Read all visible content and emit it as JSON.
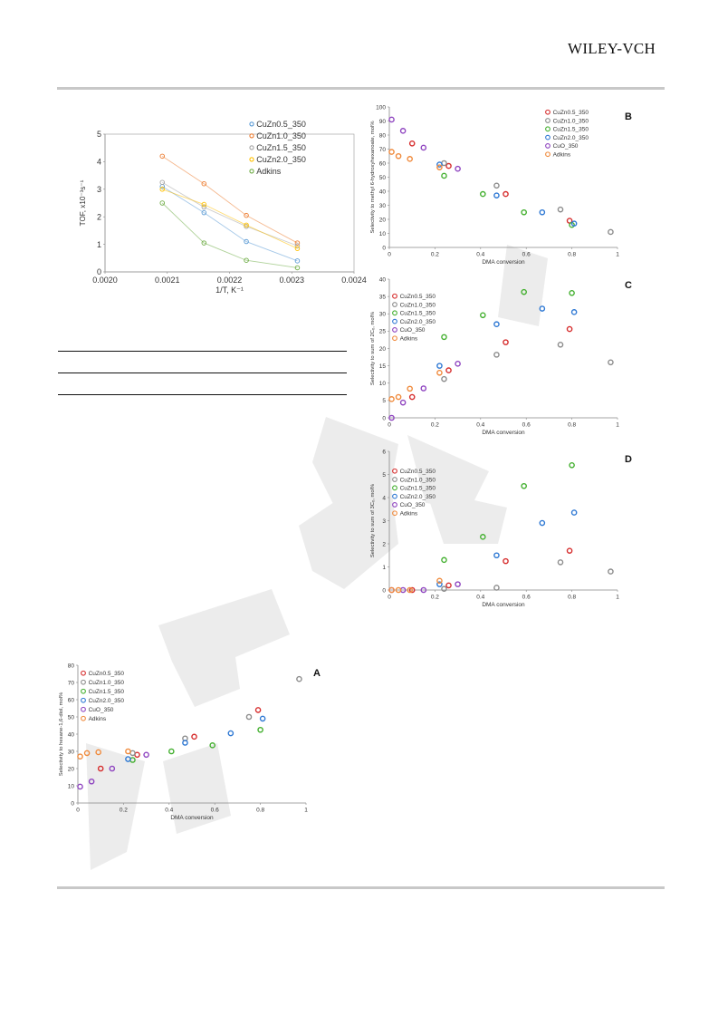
{
  "header": {
    "brand": "WILEY-VCH"
  },
  "charts": [
    {
      "id": "tof",
      "type": "scatter",
      "panel_label": "",
      "title": "",
      "xlabel": "1/T, K⁻¹",
      "ylabel": "TOF, x10⁻³s⁻¹",
      "xlim": [
        0.002,
        0.0024
      ],
      "ylim": [
        0,
        5
      ],
      "xticks": [
        "0.0020",
        "0.0021",
        "0.0022",
        "0.0023",
        "0.0024"
      ],
      "yticks": [
        "0",
        "1",
        "2",
        "3",
        "4",
        "5"
      ],
      "legend_position": "top-right",
      "series": [
        {
          "name": "CuZn0.5_350",
          "color": "#5b9bd5",
          "x": [
            0.002092,
            0.002159,
            0.002227,
            0.002309
          ],
          "y": [
            3.1,
            2.15,
            1.1,
            0.4
          ]
        },
        {
          "name": "CuZn1.0_350",
          "color": "#ed7d31",
          "x": [
            0.002092,
            0.002159,
            0.002227,
            0.002309
          ],
          "y": [
            4.2,
            3.2,
            2.05,
            1.05
          ]
        },
        {
          "name": "CuZn1.5_350",
          "color": "#a5a5a5",
          "x": [
            0.002092,
            0.002159,
            0.002227,
            0.002309
          ],
          "y": [
            3.25,
            2.35,
            1.65,
            0.95
          ]
        },
        {
          "name": "CuZn2.0_350",
          "color": "#ffc000",
          "x": [
            0.002092,
            0.002159,
            0.002227,
            0.002309
          ],
          "y": [
            3.0,
            2.45,
            1.7,
            0.85
          ]
        },
        {
          "name": "Adkins",
          "color": "#70ad47",
          "x": [
            0.002092,
            0.002159,
            0.002227,
            0.002309
          ],
          "y": [
            2.5,
            1.05,
            0.42,
            0.15
          ]
        }
      ]
    },
    {
      "id": "B",
      "type": "scatter",
      "panel_label": "B",
      "xlabel": "DMA conversion",
      "ylabel": "Selectivity to methyl 6-hydroxyhexanoate, mol%",
      "xlim": [
        0,
        1
      ],
      "ylim": [
        0,
        100
      ],
      "xticks": [
        "0",
        "0.2",
        "0.4",
        "0.6",
        "0.8",
        "1"
      ],
      "yticks": [
        "0",
        "10",
        "20",
        "30",
        "40",
        "50",
        "60",
        "70",
        "80",
        "90",
        "100"
      ],
      "legend_position": "top-right",
      "series": [
        {
          "name": "CuZn0.5_350",
          "color": "#d62d2d",
          "x": [
            0.1,
            0.26,
            0.51,
            0.79
          ],
          "y": [
            74,
            58,
            38,
            19
          ]
        },
        {
          "name": "CuZn1.0_350",
          "color": "#8c8c8c",
          "x": [
            0.24,
            0.47,
            0.75,
            0.97
          ],
          "y": [
            60,
            44,
            27,
            11
          ]
        },
        {
          "name": "CuZn1.5_350",
          "color": "#44b030",
          "x": [
            0.24,
            0.41,
            0.59,
            0.8
          ],
          "y": [
            51,
            38,
            25,
            16
          ]
        },
        {
          "name": "CuZn2.0_350",
          "color": "#2f79d4",
          "x": [
            0.22,
            0.47,
            0.67,
            0.81
          ],
          "y": [
            59,
            37,
            25,
            17
          ]
        },
        {
          "name": "CuO_350",
          "color": "#8f45c0",
          "x": [
            0.01,
            0.06,
            0.15,
            0.3
          ],
          "y": [
            91,
            83,
            71,
            56
          ]
        },
        {
          "name": "Adkins",
          "color": "#f08a3c",
          "x": [
            0.01,
            0.04,
            0.09,
            0.22
          ],
          "y": [
            68,
            65,
            63,
            57
          ]
        }
      ]
    },
    {
      "id": "C",
      "type": "scatter",
      "panel_label": "C",
      "xlabel": "DMA conversion",
      "ylabel": "Selectivity to sum of 2C₆, mol%",
      "xlim": [
        0,
        1
      ],
      "ylim": [
        0,
        40
      ],
      "xticks": [
        "0",
        "0.2",
        "0.4",
        "0.6",
        "0.8",
        "1"
      ],
      "yticks": [
        "0",
        "5",
        "10",
        "15",
        "20",
        "25",
        "30",
        "35",
        "40"
      ],
      "legend_position": "top-left",
      "series": [
        {
          "name": "CuZn0.5_350",
          "color": "#d62d2d",
          "x": [
            0.1,
            0.26,
            0.51,
            0.79
          ],
          "y": [
            6,
            13.7,
            21.8,
            25.6
          ]
        },
        {
          "name": "CuZn1.0_350",
          "color": "#8c8c8c",
          "x": [
            0.24,
            0.47,
            0.75,
            0.97
          ],
          "y": [
            11.2,
            18.2,
            21.1,
            16
          ]
        },
        {
          "name": "CuZn1.5_350",
          "color": "#44b030",
          "x": [
            0.24,
            0.41,
            0.59,
            0.8
          ],
          "y": [
            23.3,
            29.6,
            36.3,
            36
          ]
        },
        {
          "name": "CuZn2.0_350",
          "color": "#2f79d4",
          "x": [
            0.22,
            0.47,
            0.67,
            0.81
          ],
          "y": [
            15,
            27,
            31.5,
            30.5
          ]
        },
        {
          "name": "CuO_350",
          "color": "#8f45c0",
          "x": [
            0.01,
            0.06,
            0.15,
            0.3
          ],
          "y": [
            0,
            4.4,
            8.5,
            15.6
          ]
        },
        {
          "name": "Adkins",
          "color": "#f08a3c",
          "x": [
            0.01,
            0.04,
            0.09,
            0.22
          ],
          "y": [
            5.4,
            6,
            8.4,
            13
          ]
        }
      ]
    },
    {
      "id": "D",
      "type": "scatter",
      "panel_label": "D",
      "xlabel": "DMA conversion",
      "ylabel": "Selectivity to sum of 3C₆, mol%",
      "xlim": [
        0,
        1
      ],
      "ylim": [
        0,
        6
      ],
      "xticks": [
        "0",
        "0.2",
        "0.4",
        "0.6",
        "0.8",
        "1"
      ],
      "yticks": [
        "0",
        "1",
        "2",
        "3",
        "4",
        "5",
        "6"
      ],
      "legend_position": "top-left",
      "series": [
        {
          "name": "CuZn0.5_350",
          "color": "#d62d2d",
          "x": [
            0.1,
            0.26,
            0.51,
            0.79
          ],
          "y": [
            0,
            0.2,
            1.25,
            1.7
          ]
        },
        {
          "name": "CuZn1.0_350",
          "color": "#8c8c8c",
          "x": [
            0.24,
            0.47,
            0.75,
            0.97
          ],
          "y": [
            0.05,
            0.1,
            1.2,
            0.8
          ]
        },
        {
          "name": "CuZn1.5_350",
          "color": "#44b030",
          "x": [
            0.24,
            0.41,
            0.59,
            0.8
          ],
          "y": [
            1.3,
            2.3,
            4.5,
            5.4
          ]
        },
        {
          "name": "CuZn2.0_350",
          "color": "#2f79d4",
          "x": [
            0.22,
            0.47,
            0.67,
            0.81
          ],
          "y": [
            0.25,
            1.5,
            2.9,
            3.35
          ]
        },
        {
          "name": "CuO_350",
          "color": "#8f45c0",
          "x": [
            0.01,
            0.06,
            0.15,
            0.3
          ],
          "y": [
            0,
            0,
            0,
            0.25
          ]
        },
        {
          "name": "Adkins",
          "color": "#f08a3c",
          "x": [
            0.01,
            0.04,
            0.09,
            0.22
          ],
          "y": [
            0,
            0,
            0,
            0.4
          ]
        }
      ]
    },
    {
      "id": "A",
      "type": "scatter",
      "panel_label": "A",
      "xlabel": "DMA conversion",
      "ylabel": "Selectivity to hexane-1,6-diol, mol%",
      "xlim": [
        0,
        1
      ],
      "ylim": [
        0,
        80
      ],
      "xticks": [
        "0",
        "0.2",
        "0.4",
        "0.6",
        "0.8",
        "1"
      ],
      "yticks": [
        "0",
        "10",
        "20",
        "30",
        "40",
        "50",
        "60",
        "70",
        "80"
      ],
      "legend_position": "top-left",
      "series": [
        {
          "name": "CuZn0.5_350",
          "color": "#d62d2d",
          "x": [
            0.1,
            0.26,
            0.51,
            0.79
          ],
          "y": [
            20,
            28,
            38.5,
            54
          ]
        },
        {
          "name": "CuZn1.0_350",
          "color": "#8c8c8c",
          "x": [
            0.24,
            0.47,
            0.75,
            0.97
          ],
          "y": [
            29,
            37.5,
            50,
            72
          ]
        },
        {
          "name": "CuZn1.5_350",
          "color": "#44b030",
          "x": [
            0.24,
            0.41,
            0.59,
            0.8
          ],
          "y": [
            25,
            30,
            33.5,
            42.5
          ]
        },
        {
          "name": "CuZn2.0_350",
          "color": "#2f79d4",
          "x": [
            0.22,
            0.47,
            0.67,
            0.81
          ],
          "y": [
            25.5,
            35,
            40.5,
            49
          ]
        },
        {
          "name": "CuO_350",
          "color": "#8f45c0",
          "x": [
            0.01,
            0.06,
            0.15,
            0.3
          ],
          "y": [
            9.5,
            12.5,
            20,
            28
          ]
        },
        {
          "name": "Adkins",
          "color": "#f08a3c",
          "x": [
            0.01,
            0.04,
            0.09,
            0.22
          ],
          "y": [
            27,
            29,
            29.5,
            30
          ]
        }
      ]
    }
  ]
}
